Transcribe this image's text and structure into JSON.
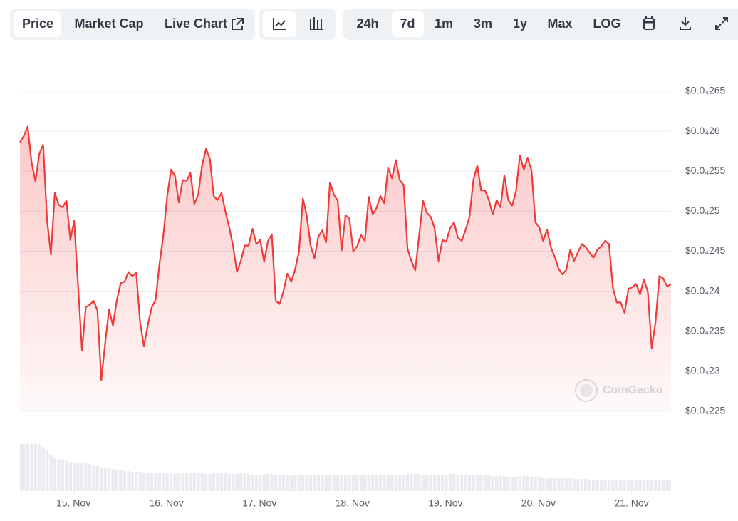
{
  "toolbar": {
    "tabs": [
      "Price",
      "Market Cap",
      "Live Chart"
    ],
    "ranges": [
      "24h",
      "7d",
      "1m",
      "3m",
      "1y",
      "Max",
      "LOG"
    ]
  },
  "watermark": "CoinGecko",
  "chart_data": {
    "type": "line",
    "color": "#f03a3a",
    "volume_color": "#e9ebef",
    "grid": true,
    "xlim": [
      14.425,
      21.425
    ],
    "xticks": [
      {
        "value": 15,
        "label": "15. Nov"
      },
      {
        "value": 16,
        "label": "16. Nov"
      },
      {
        "value": 17,
        "label": "17. Nov"
      },
      {
        "value": 18,
        "label": "18. Nov"
      },
      {
        "value": 19,
        "label": "19. Nov"
      },
      {
        "value": 20,
        "label": "20. Nov"
      },
      {
        "value": 21,
        "label": "21. Nov"
      }
    ],
    "ylim": [
      2.25e-05,
      2.65e-05
    ],
    "yticks": [
      {
        "value": 2.25e-05,
        "label": "$0.0₄225"
      },
      {
        "value": 2.3e-05,
        "label": "$0.0₄23"
      },
      {
        "value": 2.35e-05,
        "label": "$0.0₄235"
      },
      {
        "value": 2.4e-05,
        "label": "$0.0₄24"
      },
      {
        "value": 2.45e-05,
        "label": "$0.0₄245"
      },
      {
        "value": 2.5e-05,
        "label": "$0.0₄25"
      },
      {
        "value": 2.55e-05,
        "label": "$0.0₄255"
      },
      {
        "value": 2.6e-05,
        "label": "$0.0₄26"
      },
      {
        "value": 2.65e-05,
        "label": "$0.0₄265"
      }
    ],
    "x": [
      14.425,
      14.467,
      14.508,
      14.55,
      14.592,
      14.633,
      14.675,
      14.717,
      14.758,
      14.8,
      14.842,
      14.883,
      14.925,
      14.967,
      15.008,
      15.05,
      15.092,
      15.133,
      15.175,
      15.217,
      15.258,
      15.3,
      15.342,
      15.383,
      15.425,
      15.467,
      15.508,
      15.55,
      15.592,
      15.633,
      15.675,
      15.717,
      15.758,
      15.8,
      15.842,
      15.883,
      15.925,
      15.967,
      16.008,
      16.05,
      16.092,
      16.133,
      16.175,
      16.217,
      16.258,
      16.3,
      16.342,
      16.383,
      16.425,
      16.467,
      16.508,
      16.55,
      16.592,
      16.633,
      16.675,
      16.717,
      16.758,
      16.8,
      16.842,
      16.883,
      16.925,
      16.967,
      17.008,
      17.05,
      17.092,
      17.133,
      17.175,
      17.217,
      17.258,
      17.3,
      17.342,
      17.383,
      17.425,
      17.467,
      17.508,
      17.55,
      17.592,
      17.633,
      17.675,
      17.717,
      17.758,
      17.8,
      17.842,
      17.883,
      17.925,
      17.967,
      18.008,
      18.05,
      18.092,
      18.133,
      18.175,
      18.217,
      18.258,
      18.3,
      18.342,
      18.383,
      18.425,
      18.467,
      18.508,
      18.55,
      18.592,
      18.633,
      18.675,
      18.717,
      18.758,
      18.8,
      18.842,
      18.883,
      18.925,
      18.967,
      19.008,
      19.05,
      19.092,
      19.133,
      19.175,
      19.217,
      19.258,
      19.3,
      19.342,
      19.383,
      19.425,
      19.467,
      19.508,
      19.55,
      19.592,
      19.633,
      19.675,
      19.717,
      19.758,
      19.8,
      19.842,
      19.883,
      19.925,
      19.967,
      20.008,
      20.05,
      20.092,
      20.133,
      20.175,
      20.217,
      20.258,
      20.3,
      20.342,
      20.383,
      20.425,
      20.467,
      20.508,
      20.55,
      20.592,
      20.633,
      20.675,
      20.717,
      20.758,
      20.8,
      20.842,
      20.883,
      20.925,
      20.967,
      21.008,
      21.05,
      21.092,
      21.133,
      21.175,
      21.217,
      21.258,
      21.3,
      21.342,
      21.383,
      21.425
    ],
    "values": [
      2.586e-05,
      2.594e-05,
      2.606e-05,
      2.561e-05,
      2.537e-05,
      2.572e-05,
      2.583e-05,
      2.488e-05,
      2.446e-05,
      2.523e-05,
      2.508e-05,
      2.505e-05,
      2.513e-05,
      2.464e-05,
      2.488e-05,
      2.407e-05,
      2.326e-05,
      2.38e-05,
      2.383e-05,
      2.388e-05,
      2.376e-05,
      2.289e-05,
      2.336e-05,
      2.377e-05,
      2.357e-05,
      2.389e-05,
      2.41e-05,
      2.412e-05,
      2.424e-05,
      2.419e-05,
      2.423e-05,
      2.361e-05,
      2.331e-05,
      2.358e-05,
      2.38e-05,
      2.389e-05,
      2.434e-05,
      2.47e-05,
      2.519e-05,
      2.552e-05,
      2.544e-05,
      2.511e-05,
      2.539e-05,
      2.538e-05,
      2.548e-05,
      2.509e-05,
      2.521e-05,
      2.557e-05,
      2.578e-05,
      2.566e-05,
      2.519e-05,
      2.514e-05,
      2.523e-05,
      2.5e-05,
      2.48e-05,
      2.456e-05,
      2.424e-05,
      2.438e-05,
      2.457e-05,
      2.457e-05,
      2.478e-05,
      2.459e-05,
      2.464e-05,
      2.437e-05,
      2.463e-05,
      2.471e-05,
      2.388e-05,
      2.384e-05,
      2.4e-05,
      2.422e-05,
      2.412e-05,
      2.427e-05,
      2.45e-05,
      2.516e-05,
      2.495e-05,
      2.457e-05,
      2.441e-05,
      2.468e-05,
      2.476e-05,
      2.461e-05,
      2.536e-05,
      2.521e-05,
      2.513e-05,
      2.451e-05,
      2.495e-05,
      2.491e-05,
      2.45e-05,
      2.456e-05,
      2.47e-05,
      2.463e-05,
      2.518e-05,
      2.496e-05,
      2.504e-05,
      2.519e-05,
      2.51e-05,
      2.554e-05,
      2.541e-05,
      2.564e-05,
      2.539e-05,
      2.533e-05,
      2.453e-05,
      2.438e-05,
      2.426e-05,
      2.47e-05,
      2.513e-05,
      2.498e-05,
      2.493e-05,
      2.479e-05,
      2.438e-05,
      2.464e-05,
      2.462e-05,
      2.479e-05,
      2.486e-05,
      2.467e-05,
      2.463e-05,
      2.477e-05,
      2.493e-05,
      2.539e-05,
      2.557e-05,
      2.526e-05,
      2.526e-05,
      2.514e-05,
      2.496e-05,
      2.514e-05,
      2.505e-05,
      2.545e-05,
      2.514e-05,
      2.507e-05,
      2.525e-05,
      2.57e-05,
      2.552e-05,
      2.567e-05,
      2.551e-05,
      2.486e-05,
      2.48e-05,
      2.463e-05,
      2.477e-05,
      2.455e-05,
      2.443e-05,
      2.428e-05,
      2.421e-05,
      2.427e-05,
      2.452e-05,
      2.438e-05,
      2.449e-05,
      2.459e-05,
      2.455e-05,
      2.448e-05,
      2.442e-05,
      2.452e-05,
      2.456e-05,
      2.463e-05,
      2.459e-05,
      2.404e-05,
      2.386e-05,
      2.386e-05,
      2.373e-05,
      2.403e-05,
      2.405e-05,
      2.409e-05,
      2.396e-05,
      2.415e-05,
      2.4e-05,
      2.329e-05,
      2.361e-05,
      2.419e-05,
      2.416e-05,
      2.406e-05,
      2.409e-05
    ],
    "volumes": [
      66,
      66,
      66,
      66,
      66,
      66,
      62,
      57,
      50,
      46,
      45,
      44,
      42,
      41,
      40,
      40,
      40,
      39,
      38,
      37,
      35,
      33,
      33,
      32,
      31,
      30,
      29,
      28,
      28,
      27,
      27,
      27,
      26,
      25,
      25,
      26,
      26,
      25,
      25,
      24,
      24,
      25,
      25,
      25,
      26,
      26,
      25,
      25,
      24,
      24,
      25,
      25,
      25,
      25,
      24,
      24,
      24,
      25,
      25,
      24,
      23,
      23,
      23,
      23,
      24,
      24,
      23,
      23,
      23,
      22,
      22,
      22,
      22,
      23,
      23,
      22,
      22,
      22,
      23,
      23,
      22,
      22,
      22,
      23,
      23,
      23,
      23,
      22,
      22,
      22,
      22,
      23,
      23,
      23,
      23,
      22,
      22,
      22,
      23,
      23,
      24,
      24,
      24,
      24,
      23,
      23,
      23,
      22,
      22,
      23,
      23,
      24,
      24,
      23,
      23,
      23,
      22,
      22,
      23,
      23,
      22,
      22,
      21,
      21,
      21,
      21,
      20,
      20,
      20,
      21,
      21,
      21,
      20,
      20,
      20,
      19,
      19,
      19,
      18,
      18,
      18,
      18,
      18,
      17,
      17,
      17,
      17,
      16,
      16,
      16,
      16,
      16,
      16,
      16,
      16,
      16,
      16,
      15,
      15,
      15,
      15,
      15,
      15,
      15,
      15,
      15,
      15,
      15,
      15
    ]
  }
}
